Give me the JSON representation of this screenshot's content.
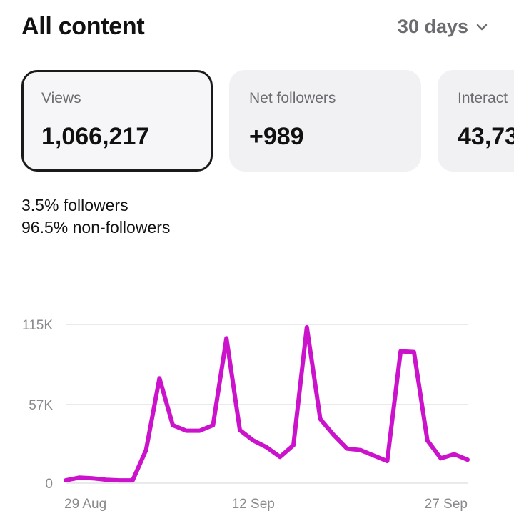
{
  "header": {
    "title": "All content",
    "range_label": "30 days",
    "range_icon": "chevron-down-icon"
  },
  "cards": [
    {
      "label": "Views",
      "value": "1,066,217",
      "selected": true
    },
    {
      "label": "Net followers",
      "value": "+989",
      "selected": false
    },
    {
      "label": "Interact",
      "value": "43,73",
      "selected": false
    }
  ],
  "breakdown": [
    {
      "percent": "3.5%",
      "label": "followers"
    },
    {
      "percent": "96.5%",
      "label": "non-followers"
    }
  ],
  "colors": {
    "line": "#cc13cc",
    "grid": "#e3e3e6",
    "axis_text": "#8a8a8e",
    "card_bg": "#f1f1f4"
  },
  "chart_data": {
    "type": "line",
    "title": "",
    "xlabel": "",
    "ylabel": "",
    "ylim": [
      0,
      115000
    ],
    "y_ticks": [
      "0",
      "57K",
      "115K"
    ],
    "y_tick_values": [
      0,
      57000,
      115000
    ],
    "x_tick_labels": [
      "29 Aug",
      "12 Sep",
      "27 Sep"
    ],
    "x_tick_index": [
      0,
      14,
      29
    ],
    "grid": true,
    "series": [
      {
        "values": [
          2000,
          4000,
          3500,
          2500,
          2000,
          2000,
          24000,
          76000,
          42000,
          38000,
          38000,
          42000,
          105000,
          38500,
          31000,
          26000,
          19000,
          27500,
          113000,
          46500,
          35000,
          25000,
          24000,
          20000,
          16000,
          95500,
          95000,
          31000,
          18000,
          21000,
          17000
        ]
      }
    ]
  }
}
